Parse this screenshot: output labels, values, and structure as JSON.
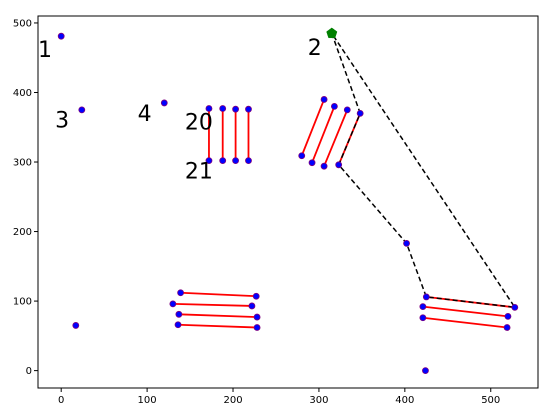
{
  "chart_data": {
    "type": "scatter",
    "title": "",
    "xlabel": "",
    "ylabel": "",
    "xlim": [
      -27,
      555
    ],
    "ylim": [
      -25,
      510
    ],
    "x_ticks": [
      0,
      100,
      200,
      300,
      400,
      500
    ],
    "y_ticks": [
      0,
      100,
      200,
      300,
      400,
      500
    ],
    "grid": false,
    "colors": {
      "points": "#0000ff",
      "point_edge": "#7f007f",
      "segments": "#ff0000",
      "path": "#000000",
      "marker": "#008000"
    },
    "points": [
      {
        "x": 0,
        "y": 481
      },
      {
        "x": 24,
        "y": 375
      },
      {
        "x": 120,
        "y": 385
      },
      {
        "x": 17,
        "y": 65
      },
      {
        "x": 424,
        "y": 0
      },
      {
        "x": 402,
        "y": 183
      },
      {
        "x": 172,
        "y": 377
      },
      {
        "x": 188,
        "y": 377
      },
      {
        "x": 203,
        "y": 376
      },
      {
        "x": 218,
        "y": 376
      },
      {
        "x": 172,
        "y": 302
      },
      {
        "x": 188,
        "y": 302
      },
      {
        "x": 203,
        "y": 302
      },
      {
        "x": 218,
        "y": 302
      },
      {
        "x": 280,
        "y": 309
      },
      {
        "x": 292,
        "y": 299
      },
      {
        "x": 306,
        "y": 294
      },
      {
        "x": 323,
        "y": 296
      },
      {
        "x": 306,
        "y": 390
      },
      {
        "x": 318,
        "y": 380
      },
      {
        "x": 333,
        "y": 375
      },
      {
        "x": 348,
        "y": 370
      },
      {
        "x": 139,
        "y": 112
      },
      {
        "x": 130,
        "y": 96
      },
      {
        "x": 137,
        "y": 81
      },
      {
        "x": 136,
        "y": 66
      },
      {
        "x": 227,
        "y": 107
      },
      {
        "x": 222,
        "y": 93
      },
      {
        "x": 228,
        "y": 77
      },
      {
        "x": 228,
        "y": 62
      },
      {
        "x": 425,
        "y": 106
      },
      {
        "x": 421,
        "y": 92
      },
      {
        "x": 421,
        "y": 76
      },
      {
        "x": 528,
        "y": 91
      },
      {
        "x": 520,
        "y": 78
      },
      {
        "x": 519,
        "y": 62
      }
    ],
    "segments": [
      [
        [
          172,
          377
        ],
        [
          172,
          302
        ]
      ],
      [
        [
          188,
          377
        ],
        [
          188,
          302
        ]
      ],
      [
        [
          203,
          376
        ],
        [
          203,
          302
        ]
      ],
      [
        [
          218,
          376
        ],
        [
          218,
          302
        ]
      ],
      [
        [
          280,
          309
        ],
        [
          306,
          390
        ]
      ],
      [
        [
          292,
          299
        ],
        [
          318,
          380
        ]
      ],
      [
        [
          306,
          294
        ],
        [
          333,
          375
        ]
      ],
      [
        [
          323,
          296
        ],
        [
          348,
          370
        ]
      ],
      [
        [
          139,
          112
        ],
        [
          227,
          107
        ]
      ],
      [
        [
          130,
          96
        ],
        [
          222,
          93
        ]
      ],
      [
        [
          137,
          81
        ],
        [
          228,
          77
        ]
      ],
      [
        [
          136,
          66
        ],
        [
          228,
          62
        ]
      ],
      [
        [
          425,
          106
        ],
        [
          528,
          91
        ]
      ],
      [
        [
          421,
          92
        ],
        [
          520,
          78
        ]
      ],
      [
        [
          421,
          76
        ],
        [
          519,
          62
        ]
      ]
    ],
    "path": [
      [
        315,
        485
      ],
      [
        348,
        370
      ],
      [
        323,
        296
      ],
      [
        402,
        183
      ],
      [
        425,
        106
      ],
      [
        528,
        91
      ],
      [
        315,
        485
      ]
    ],
    "marker": {
      "x": 315,
      "y": 485,
      "shape": "pentagon"
    },
    "annotations": [
      {
        "text": "1",
        "x": -27,
        "y": 451
      },
      {
        "text": "2",
        "x": 287,
        "y": 454
      },
      {
        "text": "3",
        "x": -7,
        "y": 350
      },
      {
        "text": "4",
        "x": 89,
        "y": 359
      },
      {
        "text": "20",
        "x": 144,
        "y": 347
      },
      {
        "text": "21",
        "x": 144,
        "y": 276
      }
    ]
  }
}
